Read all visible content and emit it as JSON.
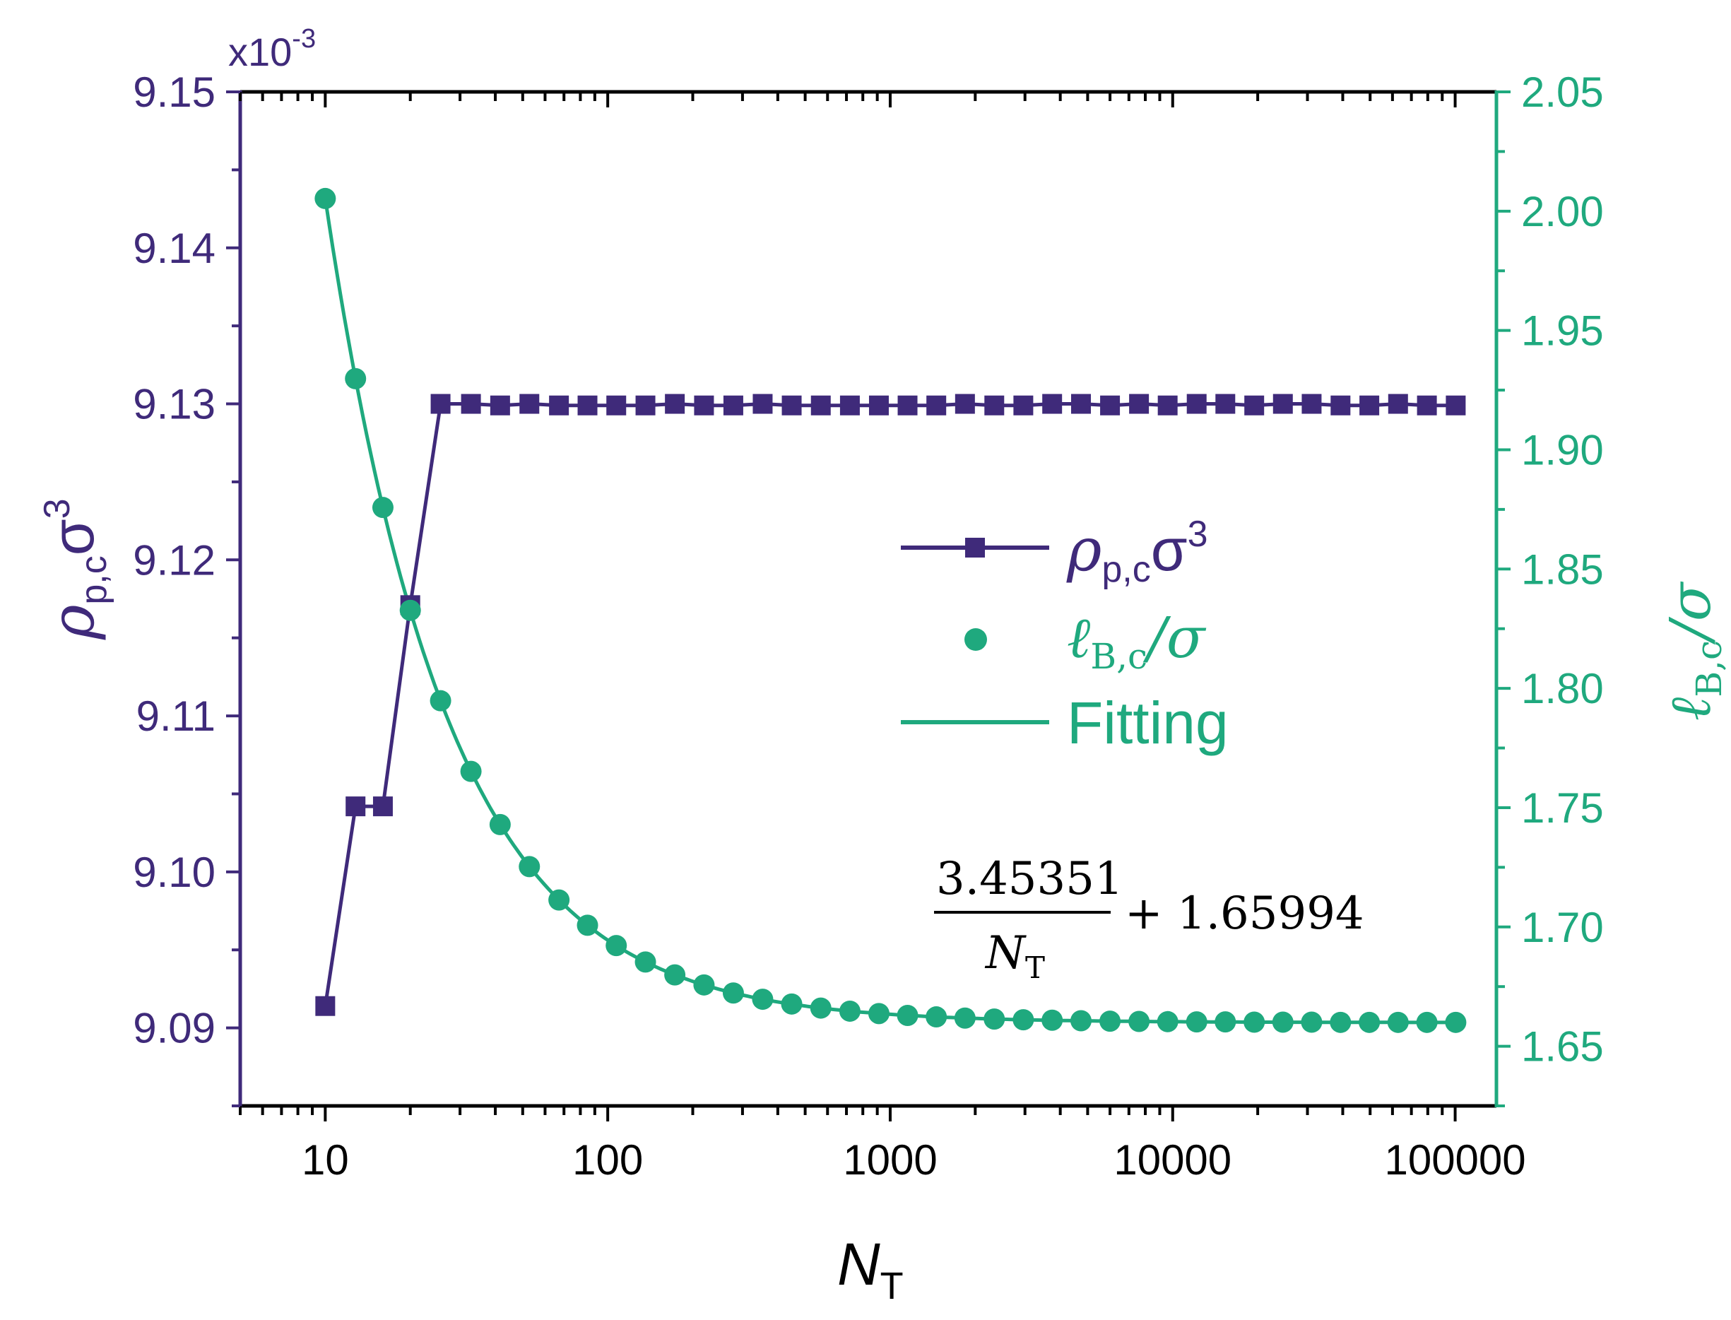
{
  "chart_data": {
    "type": "line",
    "x_axis": {
      "label": "N",
      "label_sub": "T",
      "scale": "log",
      "range": [
        5,
        140000
      ],
      "ticks": [
        10,
        100,
        1000,
        10000,
        100000
      ],
      "tick_labels": [
        "10",
        "100",
        "1000",
        "10000",
        "100000"
      ]
    },
    "y_left": {
      "label": "ρ",
      "label_sub": "p,c",
      "label_tail": "σ",
      "label_sup": "3",
      "multiplier": "x10",
      "multiplier_exp": "-3",
      "range": [
        9.085,
        9.15
      ],
      "ticks": [
        9.09,
        9.1,
        9.11,
        9.12,
        9.13,
        9.14,
        9.15
      ],
      "tick_labels": [
        "9.09",
        "9.10",
        "9.11",
        "9.12",
        "9.13",
        "9.14",
        "9.15"
      ],
      "color": "#3f2a7a"
    },
    "y_right": {
      "label": "ℓ",
      "label_sub": "B,c",
      "label_tail": "/σ",
      "range": [
        1.625,
        2.05
      ],
      "ticks": [
        1.65,
        1.7,
        1.75,
        1.8,
        1.85,
        1.9,
        1.95,
        2.0,
        2.05
      ],
      "tick_labels": [
        "1.65",
        "1.70",
        "1.75",
        "1.80",
        "1.85",
        "1.90",
        "1.95",
        "2.00",
        "2.05"
      ],
      "color": "#1fa97e"
    },
    "x": [
      10,
      12.8,
      16,
      20,
      25.6,
      32.8,
      41.6,
      52.8,
      67.2,
      84.8,
      107.2,
      136,
      172.8,
      219.2,
      278.4,
      353.6,
      448,
      568,
      720,
      912,
      1152,
      1456,
      1840,
      2336,
      2960,
      3744,
      4736,
      6000,
      7600,
      9600,
      12160,
      15360,
      19440,
      24560,
      31040,
      39280,
      49680,
      62800,
      79440,
      100480
    ],
    "series": [
      {
        "name": "ρ",
        "name_sub": "p,c",
        "name_tail": "σ",
        "name_sup": "3",
        "axis": "left",
        "marker": "square",
        "color": "#3f2a7a",
        "x": [
          10,
          12.8,
          16,
          20,
          25.6,
          32.8,
          41.6,
          52.8,
          67.2,
          84.8,
          107.2,
          136,
          172.8,
          219.2,
          278.4,
          353.6,
          448,
          568,
          720,
          912,
          1152,
          1456,
          1840,
          2336,
          2960,
          3744,
          4736,
          6000,
          7600,
          9600,
          12160,
          15360,
          19440,
          24560,
          31040,
          39280,
          49680,
          62800,
          79440,
          100480
        ],
        "values": [
          9.0914,
          9.1042,
          9.1042,
          9.1171,
          9.13,
          9.13,
          9.1299,
          9.13,
          9.1299,
          9.1299,
          9.1299,
          9.1299,
          9.13,
          9.1299,
          9.1299,
          9.13,
          9.1299,
          9.1299,
          9.1299,
          9.1299,
          9.1299,
          9.1299,
          9.13,
          9.1299,
          9.1299,
          9.13,
          9.13,
          9.1299,
          9.13,
          9.1299,
          9.13,
          9.13,
          9.1299,
          9.13,
          9.13,
          9.1299,
          9.1299,
          9.13,
          9.1299,
          9.1299
        ]
      },
      {
        "name": "ℓ",
        "name_sub": "B,c",
        "name_tail": "/σ",
        "axis": "right",
        "marker": "circle",
        "color": "#1fa97e",
        "x": [
          10,
          12.8,
          16,
          20,
          25.6,
          32.8,
          41.6,
          52.8,
          67.2,
          84.8,
          107.2,
          136,
          172.8,
          219.2,
          278.4,
          353.6,
          448,
          568,
          720,
          912,
          1152,
          1456,
          1840,
          2336,
          2960,
          3744,
          4736,
          6000,
          7600,
          9600,
          12160,
          15360,
          19440,
          24560,
          31040,
          39280,
          49680,
          62800,
          79440,
          100480
        ],
        "values": [
          2.0053,
          1.9298,
          1.8758,
          1.8327,
          1.7948,
          1.7652,
          1.7429,
          1.7253,
          1.7113,
          1.7007,
          1.6922,
          1.6853,
          1.6799,
          1.6757,
          1.6723,
          1.6697,
          1.6677,
          1.666,
          1.6647,
          1.6637,
          1.6629,
          1.6623,
          1.6618,
          1.6614,
          1.6611,
          1.6609,
          1.6607,
          1.6605,
          1.6604,
          1.6603,
          1.6602,
          1.6602,
          1.6601,
          1.6601,
          1.6601,
          1.66,
          1.66,
          1.66,
          1.66,
          1.66
        ]
      },
      {
        "name": "Fitting",
        "axis": "right",
        "marker": "none",
        "color": "#1fa97e",
        "formula": {
          "numerator": "3.45351",
          "denominator": "N",
          "denominator_sub": "T",
          "tail": "+ 1.65994"
        },
        "coefficients": {
          "a": 3.45351,
          "b": 1.65994
        }
      }
    ],
    "legend_position": "center-right",
    "grid": false
  }
}
